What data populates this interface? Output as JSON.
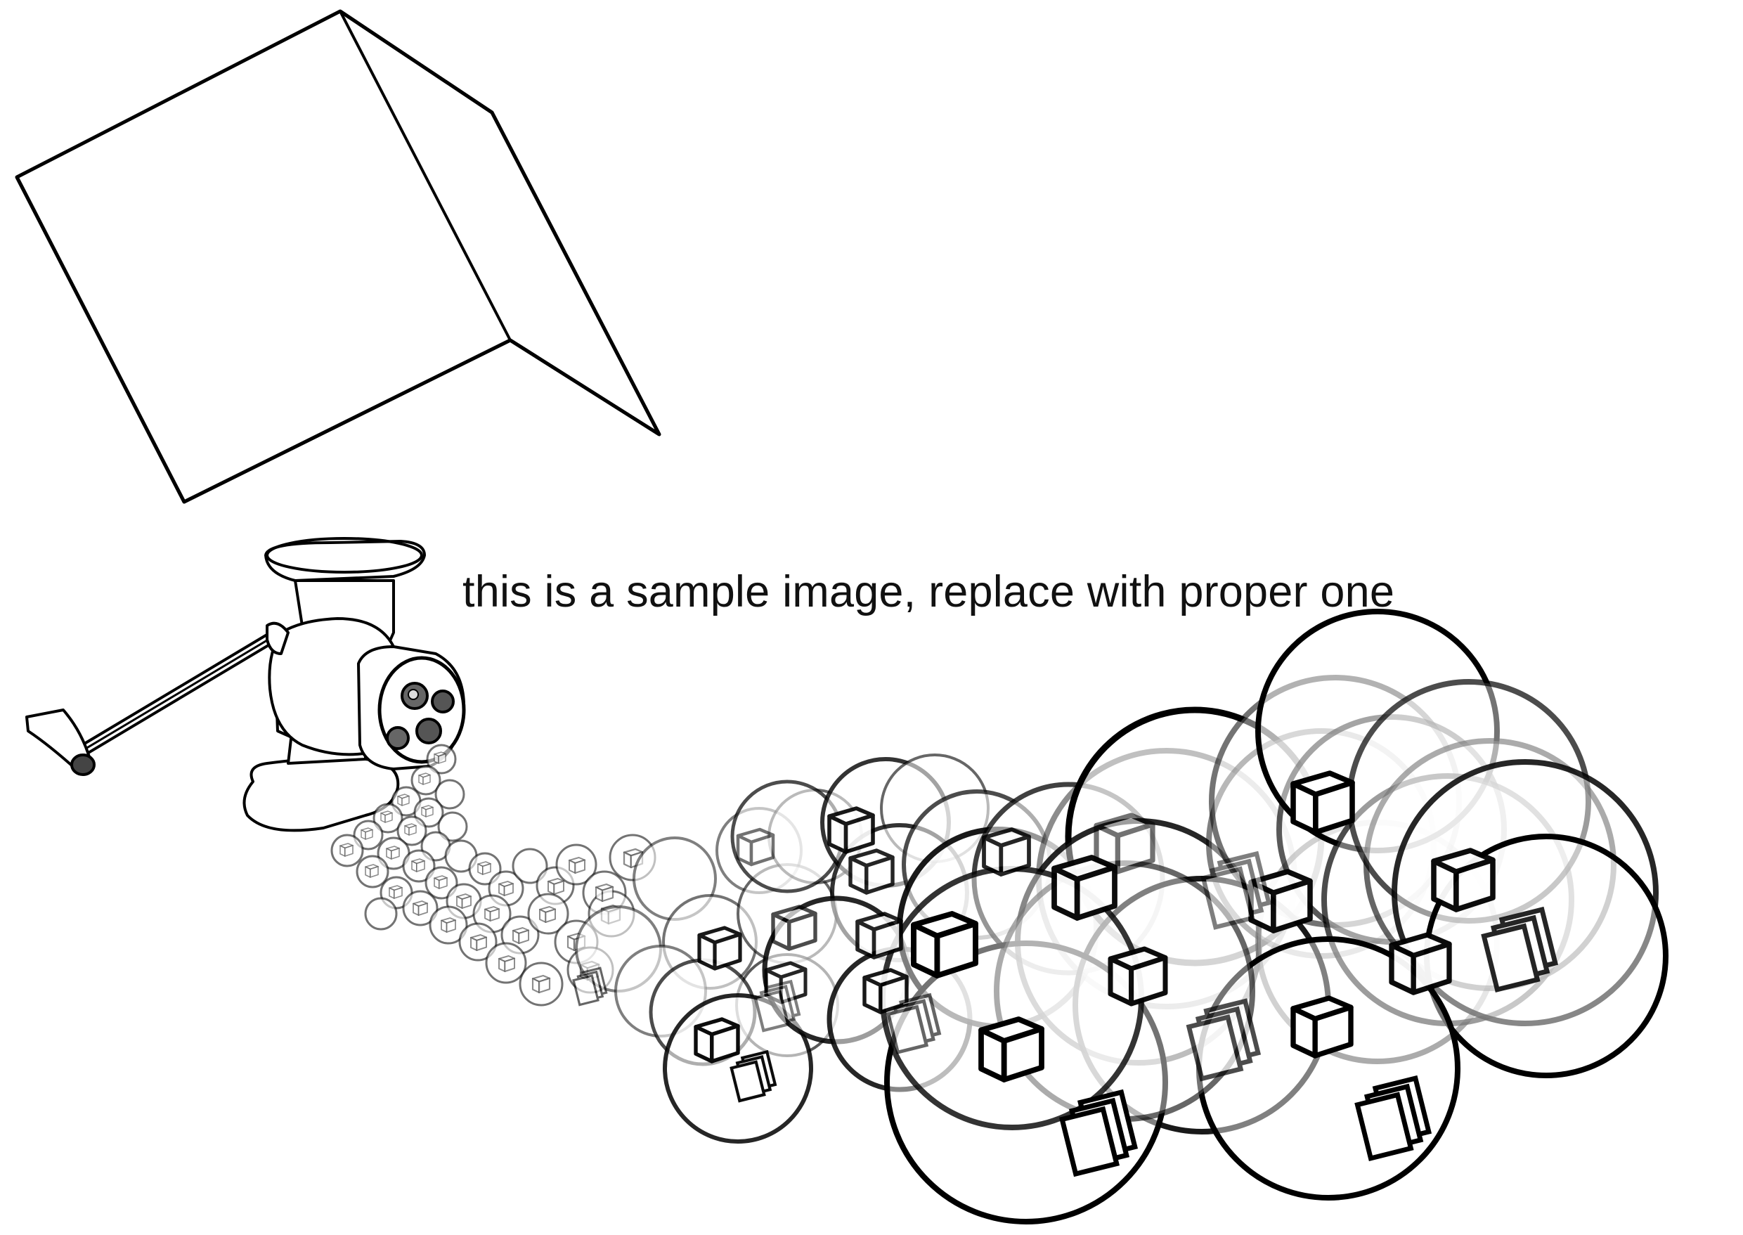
{
  "caption": "this is a sample image, replace with proper one",
  "illustration": {
    "subjects": [
      "cube-icon",
      "meat-grinder-icon",
      "bubble-icon",
      "document-stack-icon"
    ],
    "stroke_color": "#000000",
    "background_color": "#ffffff"
  }
}
